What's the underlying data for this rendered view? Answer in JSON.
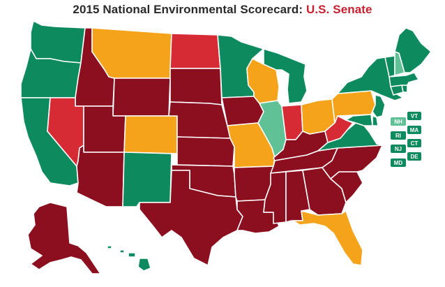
{
  "title": {
    "main": "2015 National Environmental Scorecard:",
    "accent": "U.S. Senate"
  },
  "palette": {
    "dark_green": "#0e8a5f",
    "light_green": "#5fc195",
    "orange": "#f5a31a",
    "red": "#d62b34",
    "maroon": "#8b0f1e",
    "title_accent": "#c8202f"
  },
  "states": {
    "WA": "dark_green",
    "OR": "dark_green",
    "CA": "dark_green",
    "ID": "maroon",
    "NV": "red",
    "MT": "orange",
    "WY": "maroon",
    "UT": "maroon",
    "AZ": "maroon",
    "CO": "orange",
    "NM": "dark_green",
    "ND": "red",
    "SD": "maroon",
    "NE": "maroon",
    "KS": "maroon",
    "OK": "maroon",
    "TX": "maroon",
    "MN": "dark_green",
    "IA": "maroon",
    "MO": "orange",
    "AR": "maroon",
    "LA": "maroon",
    "WI": "orange",
    "IL": "light_green",
    "MI": "dark_green",
    "IN": "red",
    "OH": "orange",
    "KY": "maroon",
    "TN": "maroon",
    "MS": "maroon",
    "AL": "maroon",
    "GA": "maroon",
    "FL": "orange",
    "SC": "maroon",
    "NC": "maroon",
    "VA": "dark_green",
    "WV": "red",
    "PA": "orange",
    "NY": "dark_green",
    "NJ": "dark_green",
    "DE": "dark_green",
    "MD": "dark_green",
    "CT": "dark_green",
    "RI": "dark_green",
    "MA": "dark_green",
    "VT": "dark_green",
    "NH": "light_green",
    "ME": "dark_green",
    "AK": "maroon",
    "HI": "dark_green"
  },
  "small_states": {
    "NH": "NH",
    "VT": "VT",
    "MA": "MA",
    "RI": "RI",
    "CT": "CT",
    "NJ": "NJ",
    "DE": "DE",
    "MD": "MD"
  }
}
